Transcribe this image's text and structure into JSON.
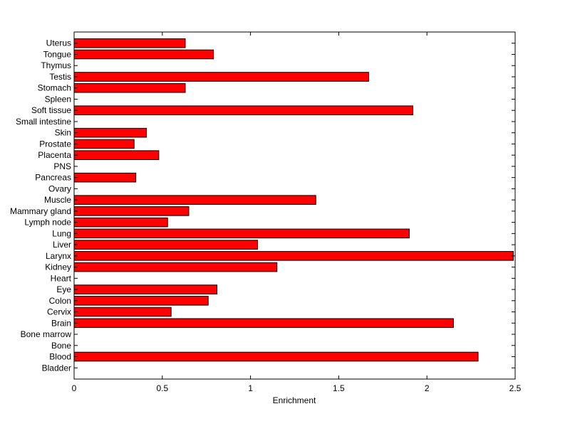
{
  "chart_data": {
    "type": "bar",
    "orientation": "horizontal",
    "title": "",
    "xlabel": "Enrichment",
    "ylabel": "",
    "xlim": [
      0,
      2.5
    ],
    "xticks": [
      0,
      0.5,
      1,
      1.5,
      2,
      2.5
    ],
    "xtick_labels": [
      "0",
      "0.5",
      "1",
      "1.5",
      "2",
      "2.5"
    ],
    "grid": false,
    "categories": [
      "Bladder",
      "Blood",
      "Bone",
      "Bone marrow",
      "Brain",
      "Cervix",
      "Colon",
      "Eye",
      "Heart",
      "Kidney",
      "Larynx",
      "Liver",
      "Lung",
      "Lymph node",
      "Mammary gland",
      "Muscle",
      "Ovary",
      "Pancreas",
      "PNS",
      "Placenta",
      "Prostate",
      "Skin",
      "Small intestine",
      "Soft tissue",
      "Spleen",
      "Stomach",
      "Testis",
      "Thymus",
      "Tongue",
      "Uterus"
    ],
    "values": [
      0,
      2.29,
      0,
      0,
      2.15,
      0.55,
      0.76,
      0.81,
      0,
      1.15,
      2.49,
      1.04,
      1.9,
      0.53,
      0.65,
      1.37,
      0,
      0.35,
      0,
      0.48,
      0.34,
      0.41,
      0,
      1.92,
      0,
      0.63,
      1.67,
      0,
      0.79,
      0.63
    ],
    "colors": {
      "bar_fill": "#ff0000",
      "bar_edge": "#000000"
    }
  }
}
